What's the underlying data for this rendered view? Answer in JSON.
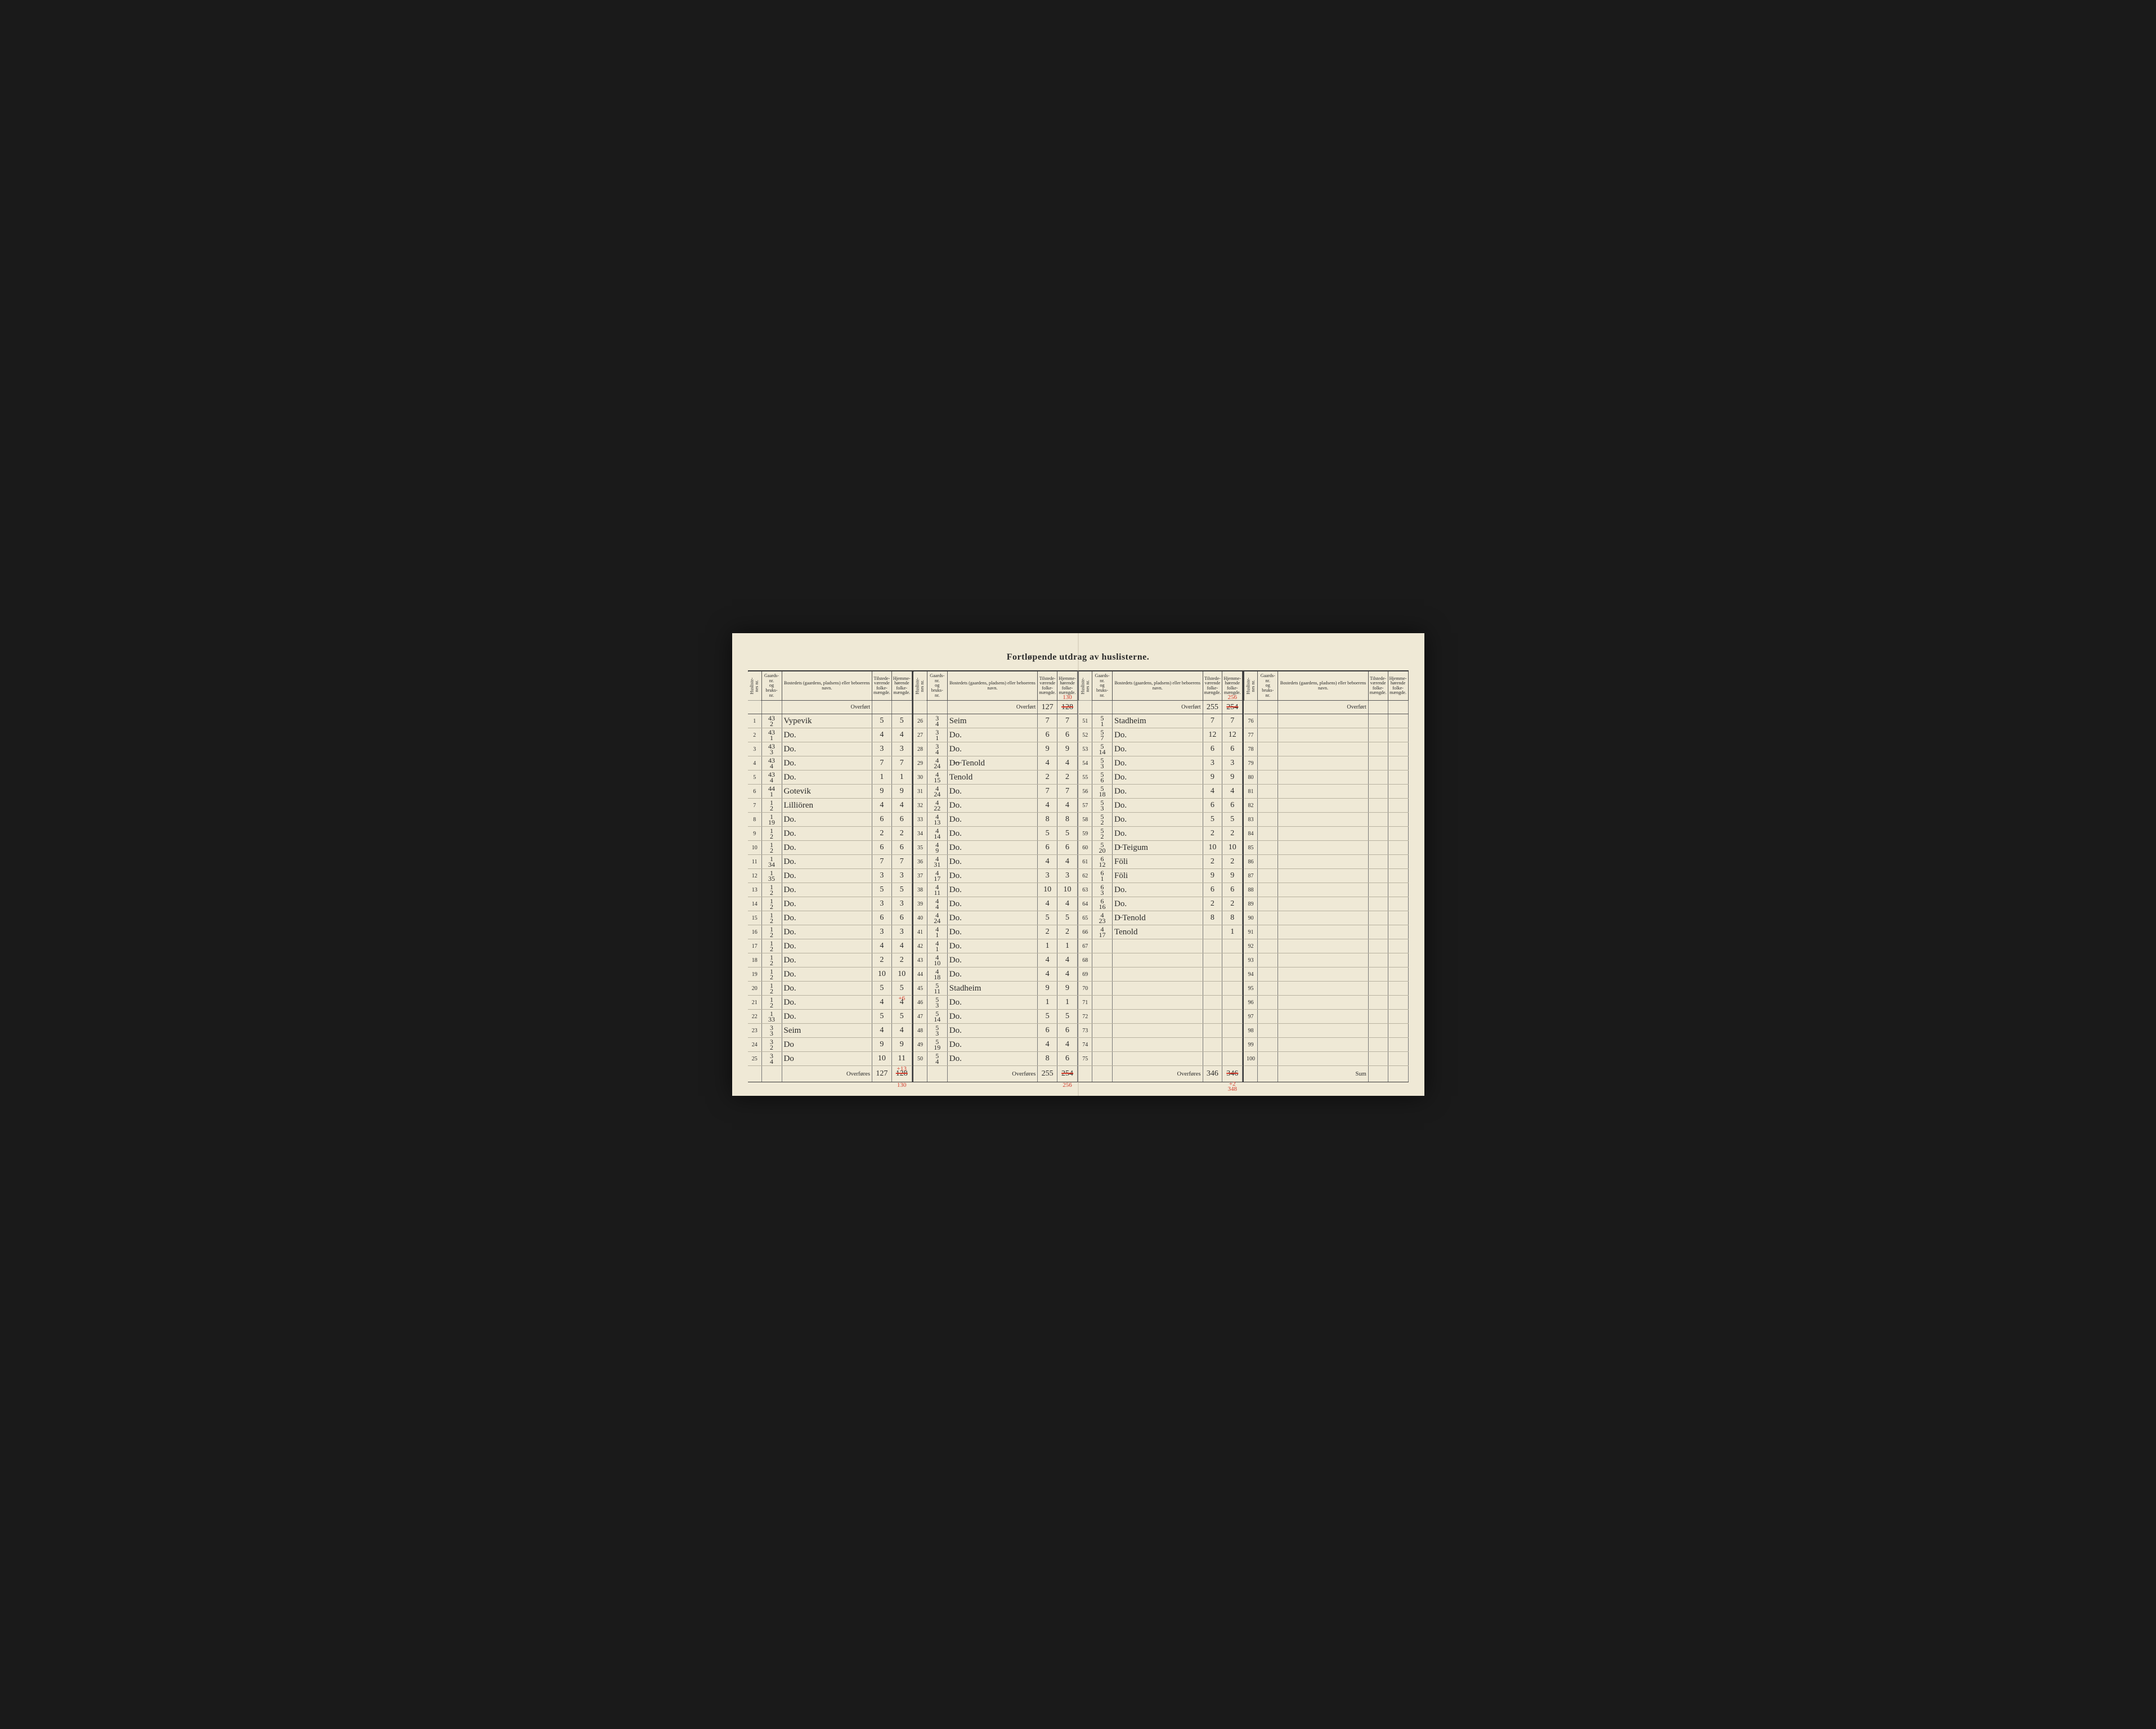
{
  "title": "Fortløpende utdrag  av huslisterne.",
  "headers": {
    "husliste": "Husliste-\nnes nr.",
    "gaards": "Gaards-\nnr.\nog\nbruks-\nnr.",
    "bosted": "Bostedets (gaardens, pladsens) eller beboerens navn.",
    "tilstede": "Tilstede-\nværende\nfolke-\nmængde.",
    "hjemme": "Hjemme-\nhørende\nfolke-\nmængde."
  },
  "overfort_label": "Overført",
  "overfores_label": "Overføres",
  "sum_label": "Sum",
  "panels": [
    {
      "overfort": {
        "til": "",
        "hjem": ""
      },
      "rows": [
        {
          "n": "1",
          "g": "43\n2",
          "name": "Vypevik",
          "t": "5",
          "h": "5"
        },
        {
          "n": "2",
          "g": "43\n1",
          "name": "Do.",
          "t": "4",
          "h": "4"
        },
        {
          "n": "3",
          "g": "43\n3",
          "name": "Do.",
          "t": "3",
          "h": "3"
        },
        {
          "n": "4",
          "g": "43\n4",
          "name": "Do.",
          "t": "7",
          "h": "7"
        },
        {
          "n": "5",
          "g": "43\n4",
          "name": "Do.",
          "t": "1",
          "h": "1"
        },
        {
          "n": "6",
          "g": "44\n1",
          "name": "Gotevik",
          "t": "9",
          "h": "9"
        },
        {
          "n": "7",
          "g": "1\n2",
          "name": "Lilliören",
          "t": "4",
          "h": "4"
        },
        {
          "n": "8",
          "g": "1\n19",
          "name": "Do.",
          "t": "6",
          "h": "6"
        },
        {
          "n": "9",
          "g": "1\n2",
          "name": "Do.",
          "t": "2",
          "h": "2"
        },
        {
          "n": "10",
          "g": "1\n2",
          "name": "Do.",
          "t": "6",
          "h": "6"
        },
        {
          "n": "11",
          "g": "1\n34",
          "name": "Do.",
          "t": "7",
          "h": "7"
        },
        {
          "n": "12",
          "g": "1\n35",
          "name": "Do.",
          "t": "3",
          "h": "3"
        },
        {
          "n": "13",
          "g": "1\n2",
          "name": "Do.",
          "t": "5",
          "h": "5"
        },
        {
          "n": "14",
          "g": "1\n2",
          "name": "Do.",
          "t": "3",
          "h": "3"
        },
        {
          "n": "15",
          "g": "1\n2",
          "name": "Do.",
          "t": "6",
          "h": "6"
        },
        {
          "n": "16",
          "g": "1\n2",
          "name": "Do.",
          "t": "3",
          "h": "3"
        },
        {
          "n": "17",
          "g": "1\n2",
          "name": "Do.",
          "t": "4",
          "h": "4"
        },
        {
          "n": "18",
          "g": "1\n2",
          "name": "Do.",
          "t": "2",
          "h": "2"
        },
        {
          "n": "19",
          "g": "1\n2",
          "name": "Do.",
          "t": "10",
          "h": "10"
        },
        {
          "n": "20",
          "g": "1\n2",
          "name": "Do.",
          "t": "5",
          "h": "5",
          "h_ann": "+6"
        },
        {
          "n": "21",
          "g": "1\n2",
          "name": "Do.",
          "t": "4",
          "h": "4"
        },
        {
          "n": "22",
          "g": "1\n33",
          "name": "Do.",
          "t": "5",
          "h": "5"
        },
        {
          "n": "23",
          "g": "3\n3",
          "name": "Seim",
          "t": "4",
          "h": "4"
        },
        {
          "n": "24",
          "g": "3\n2",
          "name": "Do",
          "t": "9",
          "h": "9"
        },
        {
          "n": "25",
          "g": "3\n4",
          "name": "Do",
          "t": "10",
          "h": "11",
          "h_ann": "+13"
        }
      ],
      "overfores": {
        "til": "127",
        "hjem": "128",
        "hjem_strike": true,
        "ann": "130"
      }
    },
    {
      "overfort": {
        "til": "127",
        "hjem": "128",
        "hjem_strike": true,
        "ann": "130"
      },
      "rows": [
        {
          "n": "26",
          "g": "3\n4",
          "name": "Seim",
          "t": "7",
          "h": "7"
        },
        {
          "n": "27",
          "g": "3\n1",
          "name": "Do.",
          "t": "6",
          "h": "6"
        },
        {
          "n": "28",
          "g": "3\n4",
          "name": "Do.",
          "t": "9",
          "h": "9"
        },
        {
          "n": "29",
          "g": "4\n24",
          "name": "D̶o̶ Tenold",
          "t": "4",
          "h": "4"
        },
        {
          "n": "30",
          "g": "4\n15",
          "name": "Tenold",
          "t": "2",
          "h": "2"
        },
        {
          "n": "31",
          "g": "4\n24",
          "name": "Do.",
          "t": "7",
          "h": "7"
        },
        {
          "n": "32",
          "g": "4\n22",
          "name": "Do.",
          "t": "4",
          "h": "4"
        },
        {
          "n": "33",
          "g": "4\n13",
          "name": "Do.",
          "t": "8",
          "h": "8"
        },
        {
          "n": "34",
          "g": "4\n14",
          "name": "Do.",
          "t": "5",
          "h": "5"
        },
        {
          "n": "35",
          "g": "4\n9",
          "name": "Do.",
          "t": "6",
          "h": "6"
        },
        {
          "n": "36",
          "g": "4\n31",
          "name": "Do.",
          "t": "4",
          "h": "4"
        },
        {
          "n": "37",
          "g": "4\n17",
          "name": "Do.",
          "t": "3",
          "h": "3"
        },
        {
          "n": "38",
          "g": "4\n11",
          "name": "Do.",
          "t": "10",
          "h": "10"
        },
        {
          "n": "39",
          "g": "4\n4",
          "name": "Do.",
          "t": "4",
          "h": "4"
        },
        {
          "n": "40",
          "g": "4\n24",
          "name": "Do.",
          "t": "5",
          "h": "5"
        },
        {
          "n": "41",
          "g": "4\n1",
          "name": "Do.",
          "t": "2",
          "h": "2"
        },
        {
          "n": "42",
          "g": "4\n1",
          "name": "Do.",
          "t": "1",
          "h": "1"
        },
        {
          "n": "43",
          "g": "4\n10",
          "name": "Do.",
          "t": "4",
          "h": "4"
        },
        {
          "n": "44",
          "g": "4\n18",
          "name": "Do.",
          "t": "4",
          "h": "4"
        },
        {
          "n": "45",
          "g": "5\n11",
          "name": "Stadheim",
          "t": "9",
          "h": "9"
        },
        {
          "n": "46",
          "g": "5\n3",
          "name": "Do.",
          "t": "1",
          "h": "1"
        },
        {
          "n": "47",
          "g": "5\n14",
          "name": "Do.",
          "t": "5",
          "h": "5"
        },
        {
          "n": "48",
          "g": "5\n3",
          "name": "Do.",
          "t": "6",
          "h": "6"
        },
        {
          "n": "49",
          "g": "5\n19",
          "name": "Do.",
          "t": "4",
          "h": "4"
        },
        {
          "n": "50",
          "g": "5\n4",
          "name": "Do.",
          "t": "8",
          "h": "6"
        }
      ],
      "overfores": {
        "til": "255",
        "hjem": "254",
        "hjem_strike": true,
        "ann": "256"
      }
    },
    {
      "overfort": {
        "til": "255",
        "hjem": "254",
        "hjem_strike": true,
        "ann": "256"
      },
      "rows": [
        {
          "n": "51",
          "g": "5\n1",
          "name": "Stadheim",
          "t": "7",
          "h": "7"
        },
        {
          "n": "52",
          "g": "5\n7",
          "name": "Do.",
          "t": "12",
          "h": "12"
        },
        {
          "n": "53",
          "g": "5\n14",
          "name": "Do.",
          "t": "6",
          "h": "6"
        },
        {
          "n": "54",
          "g": "5\n3",
          "name": "Do.",
          "t": "3",
          "h": "3"
        },
        {
          "n": "55",
          "g": "5\n6",
          "name": "Do.",
          "t": "9",
          "h": "9"
        },
        {
          "n": "56",
          "g": "5\n18",
          "name": "Do.",
          "t": "4",
          "h": "4"
        },
        {
          "n": "57",
          "g": "5\n3",
          "name": "Do.",
          "t": "6",
          "h": "6"
        },
        {
          "n": "58",
          "g": "5\n2",
          "name": "Do.",
          "t": "5",
          "h": "5"
        },
        {
          "n": "59",
          "g": "5\n2",
          "name": "Do.",
          "t": "2",
          "h": "2"
        },
        {
          "n": "60",
          "g": "5\n20",
          "name": "D̶ Teigum",
          "t": "10",
          "h": "10"
        },
        {
          "n": "61",
          "g": "6\n12",
          "name": "Föli",
          "t": "2",
          "h": "2"
        },
        {
          "n": "62",
          "g": "6\n1",
          "name": "Föli",
          "t": "9",
          "h": "9"
        },
        {
          "n": "63",
          "g": "6\n3",
          "name": "Do.",
          "t": "6",
          "h": "6"
        },
        {
          "n": "64",
          "g": "6\n16",
          "name": "Do.",
          "t": "2",
          "h": "2"
        },
        {
          "n": "65",
          "g": "4\n23",
          "name": "D̶ Tenold",
          "t": "8",
          "h": "8"
        },
        {
          "n": "66",
          "g": "4\n17",
          "name": "Tenold",
          "t": "",
          "h": "1"
        },
        {
          "n": "67",
          "g": "",
          "name": "",
          "t": "",
          "h": ""
        },
        {
          "n": "68",
          "g": "",
          "name": "",
          "t": "",
          "h": ""
        },
        {
          "n": "69",
          "g": "",
          "name": "",
          "t": "",
          "h": ""
        },
        {
          "n": "70",
          "g": "",
          "name": "",
          "t": "",
          "h": ""
        },
        {
          "n": "71",
          "g": "",
          "name": "",
          "t": "",
          "h": ""
        },
        {
          "n": "72",
          "g": "",
          "name": "",
          "t": "",
          "h": ""
        },
        {
          "n": "73",
          "g": "",
          "name": "",
          "t": "",
          "h": ""
        },
        {
          "n": "74",
          "g": "",
          "name": "",
          "t": "",
          "h": ""
        },
        {
          "n": "75",
          "g": "",
          "name": "",
          "t": "",
          "h": ""
        }
      ],
      "overfores": {
        "til": "346",
        "hjem": "346",
        "hjem_strike": true,
        "ann": "+2\n348"
      }
    },
    {
      "overfort": {
        "til": "",
        "hjem": ""
      },
      "rows": [
        {
          "n": "76",
          "g": "",
          "name": "",
          "t": "",
          "h": ""
        },
        {
          "n": "77",
          "g": "",
          "name": "",
          "t": "",
          "h": ""
        },
        {
          "n": "78",
          "g": "",
          "name": "",
          "t": "",
          "h": ""
        },
        {
          "n": "79",
          "g": "",
          "name": "",
          "t": "",
          "h": ""
        },
        {
          "n": "80",
          "g": "",
          "name": "",
          "t": "",
          "h": ""
        },
        {
          "n": "81",
          "g": "",
          "name": "",
          "t": "",
          "h": ""
        },
        {
          "n": "82",
          "g": "",
          "name": "",
          "t": "",
          "h": ""
        },
        {
          "n": "83",
          "g": "",
          "name": "",
          "t": "",
          "h": ""
        },
        {
          "n": "84",
          "g": "",
          "name": "",
          "t": "",
          "h": ""
        },
        {
          "n": "85",
          "g": "",
          "name": "",
          "t": "",
          "h": ""
        },
        {
          "n": "86",
          "g": "",
          "name": "",
          "t": "",
          "h": ""
        },
        {
          "n": "87",
          "g": "",
          "name": "",
          "t": "",
          "h": ""
        },
        {
          "n": "88",
          "g": "",
          "name": "",
          "t": "",
          "h": ""
        },
        {
          "n": "89",
          "g": "",
          "name": "",
          "t": "",
          "h": ""
        },
        {
          "n": "90",
          "g": "",
          "name": "",
          "t": "",
          "h": ""
        },
        {
          "n": "91",
          "g": "",
          "name": "",
          "t": "",
          "h": ""
        },
        {
          "n": "92",
          "g": "",
          "name": "",
          "t": "",
          "h": ""
        },
        {
          "n": "93",
          "g": "",
          "name": "",
          "t": "",
          "h": ""
        },
        {
          "n": "94",
          "g": "",
          "name": "",
          "t": "",
          "h": ""
        },
        {
          "n": "95",
          "g": "",
          "name": "",
          "t": "",
          "h": ""
        },
        {
          "n": "96",
          "g": "",
          "name": "",
          "t": "",
          "h": ""
        },
        {
          "n": "97",
          "g": "",
          "name": "",
          "t": "",
          "h": ""
        },
        {
          "n": "98",
          "g": "",
          "name": "",
          "t": "",
          "h": ""
        },
        {
          "n": "99",
          "g": "",
          "name": "",
          "t": "",
          "h": ""
        },
        {
          "n": "100",
          "g": "",
          "name": "",
          "t": "",
          "h": ""
        }
      ],
      "overfores": {
        "label_override": "Sum",
        "til": "",
        "hjem": ""
      }
    }
  ],
  "colors": {
    "paper": "#efe9d6",
    "rule": "#3a3a3a",
    "light_rule": "#b8b2a0",
    "ink": "#2b2b2b",
    "red_ink": "#d13a2a",
    "background": "#1a1a1a"
  },
  "typography": {
    "title_font": "Georgia, serif",
    "title_size_pt": 16,
    "header_size_pt": 8,
    "body_size_pt": 10,
    "script_font": "Brush Script MT, Segoe Script, cursive"
  }
}
